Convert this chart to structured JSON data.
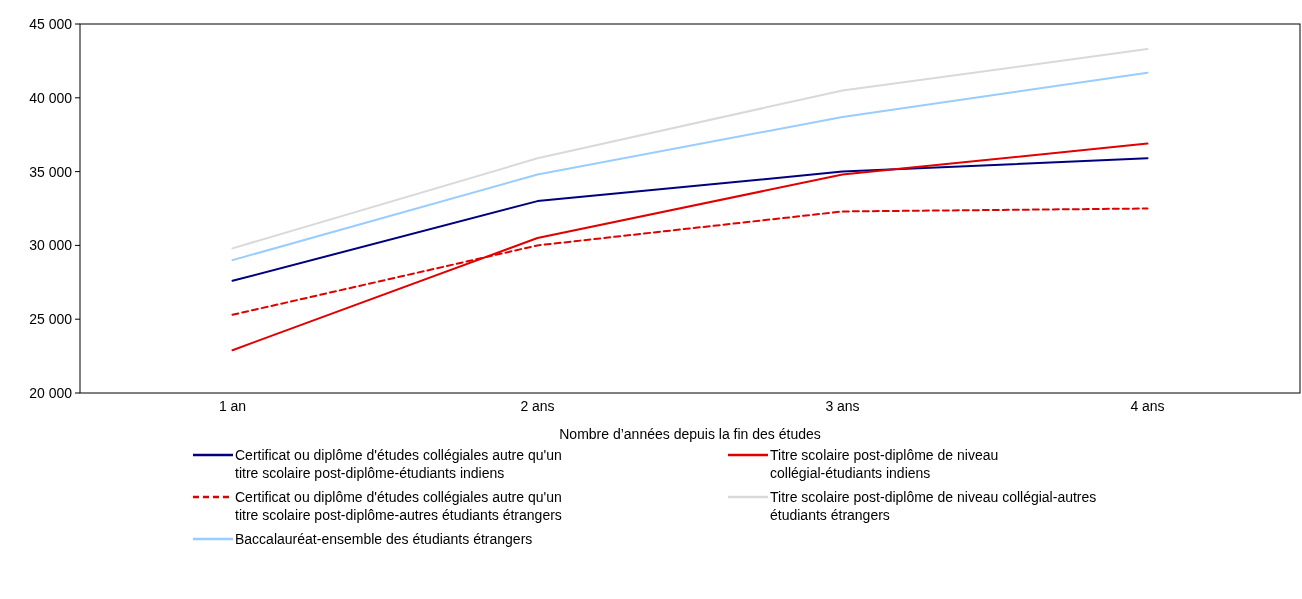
{
  "chart_data": {
    "type": "line",
    "xlabel": "Nombre d’années depuis la fin des études",
    "categories": [
      "1 an",
      "2 ans",
      "3 ans",
      "4 ans"
    ],
    "ylim": [
      20000,
      45000
    ],
    "yticks": [
      {
        "value": 20000,
        "label": "20 000"
      },
      {
        "value": 25000,
        "label": "25 000"
      },
      {
        "value": 30000,
        "label": "30 000"
      },
      {
        "value": 35000,
        "label": "35 000"
      },
      {
        "value": 40000,
        "label": "40 000"
      },
      {
        "value": 45000,
        "label": "45 000"
      }
    ],
    "grid": false,
    "legend": "bottom",
    "series": [
      {
        "name": "Certificat ou diplôme d'études collégiales autre qu'un titre scolaire post-diplôme-étudiants indiens",
        "color": "#00007f",
        "values": [
          27600,
          33000,
          35000,
          35900
        ]
      },
      {
        "name": "Titre scolaire post-diplôme de niveau collégial-étudiants indiens",
        "color": "#e00000",
        "values": [
          22900,
          30500,
          34800,
          36900
        ]
      },
      {
        "name": "Certificat ou diplôme d'études collégiales autre qu'un titre scolaire post-diplôme-autres étudiants étrangers",
        "color": "#e00000",
        "line_style": "dashed",
        "values": [
          25300,
          30000,
          32300,
          32500
        ]
      },
      {
        "name": "Titre scolaire post-diplôme de niveau collégial-autres étudiants étrangers",
        "color": "#d9d9d9",
        "values": [
          29800,
          35900,
          40500,
          43300
        ]
      },
      {
        "name": "Baccalauréat-ensemble des étudiants étrangers",
        "color": "#99ccff",
        "values": [
          29000,
          34800,
          38700,
          41700
        ]
      }
    ]
  }
}
